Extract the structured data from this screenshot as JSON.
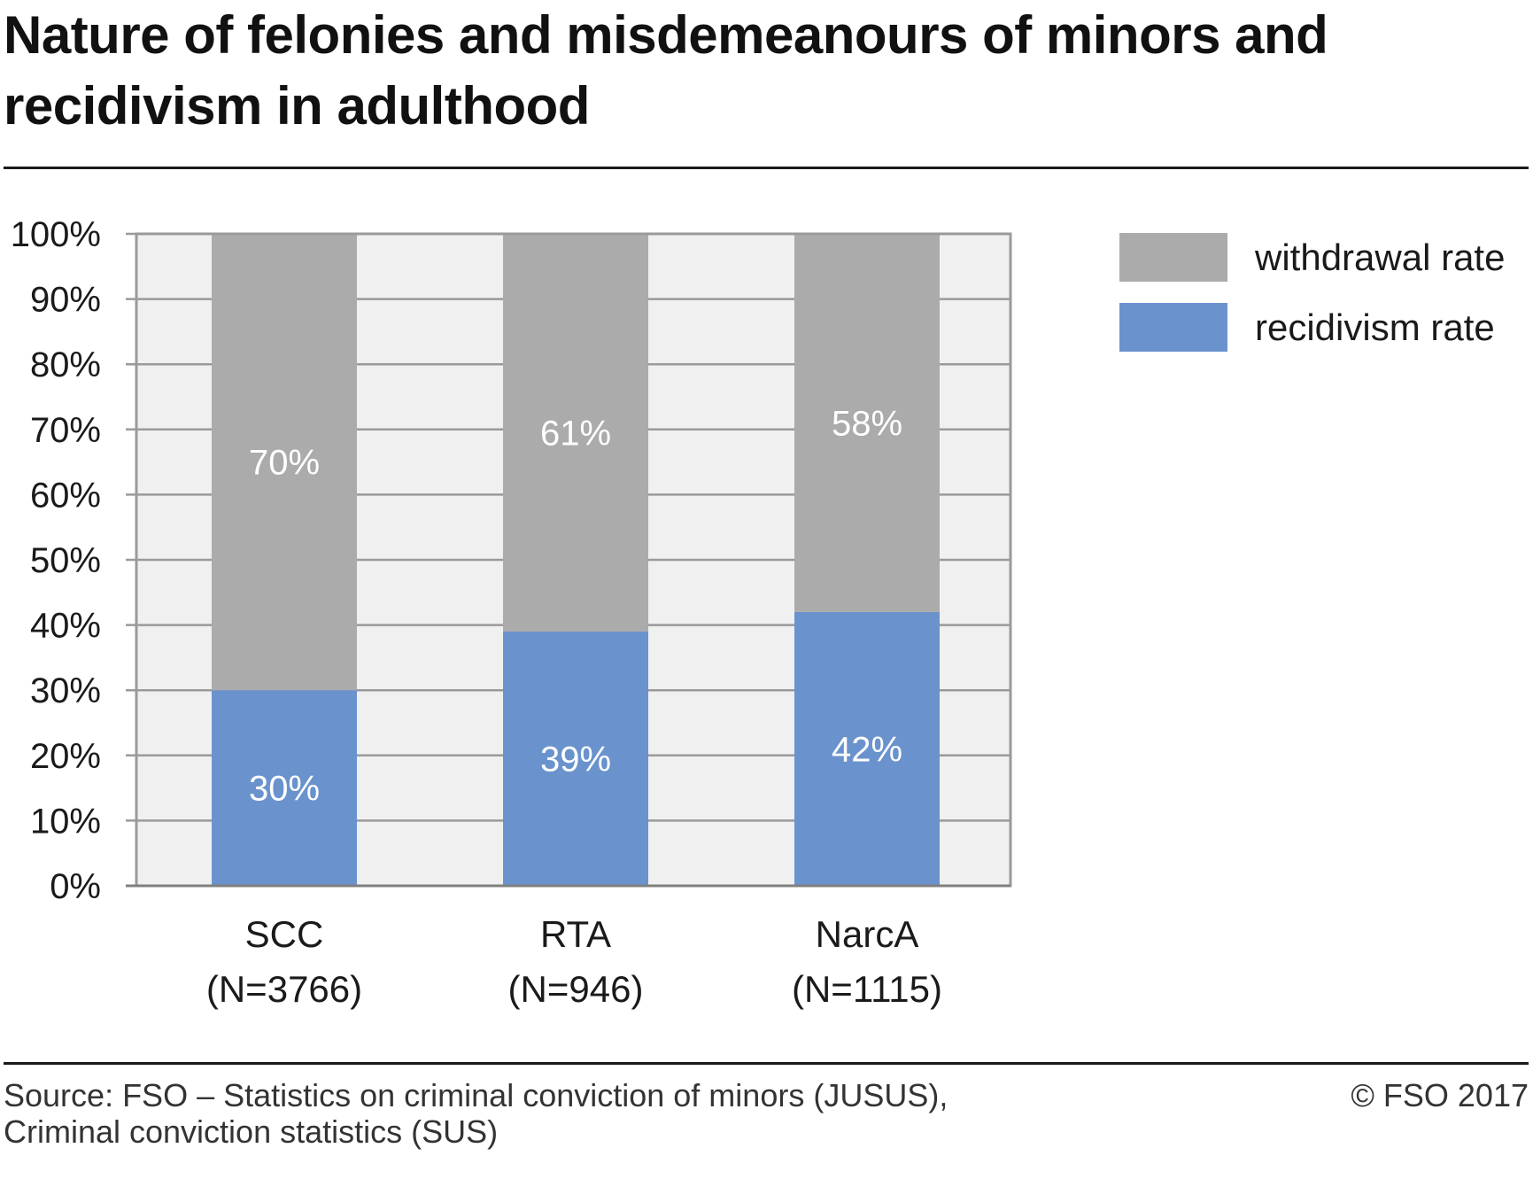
{
  "title": "Nature of felonies and misdemeanours of minors and recidivism in adulthood",
  "chart_data": {
    "type": "bar",
    "stacked": true,
    "percent_scale": true,
    "categories": [
      {
        "label": "SCC",
        "n_label": "(N=3766)"
      },
      {
        "label": "RTA",
        "n_label": "(N=946)"
      },
      {
        "label": "NarcA",
        "n_label": "(N=1115)"
      }
    ],
    "series": [
      {
        "name": "recidivism rate",
        "color": "#6a93cd",
        "values": [
          30,
          39,
          42
        ],
        "labels": [
          "30%",
          "39%",
          "42%"
        ]
      },
      {
        "name": "withdrawal rate",
        "color": "#ababab",
        "values": [
          70,
          61,
          58
        ],
        "labels": [
          "70%",
          "61%",
          "58%"
        ]
      }
    ],
    "ylim": [
      0,
      100
    ],
    "ytick_values": [
      0,
      10,
      20,
      30,
      40,
      50,
      60,
      70,
      80,
      90,
      100
    ],
    "yticks": [
      "0%",
      "10%",
      "20%",
      "30%",
      "40%",
      "50%",
      "60%",
      "70%",
      "80%",
      "90%",
      "100%"
    ],
    "grid": true,
    "plot_background": "#f0f0f0",
    "legend": {
      "position": "top-right",
      "entries": [
        {
          "name": "withdrawal rate",
          "color": "#ababab"
        },
        {
          "name": "recidivism rate",
          "color": "#6a93cd"
        }
      ]
    }
  },
  "footer": {
    "source_line1": "Source: FSO – Statistics on criminal conviction of minors (JUSUS),",
    "source_line2": "Criminal conviction statistics (SUS)",
    "copyright": "© FSO 2017"
  }
}
